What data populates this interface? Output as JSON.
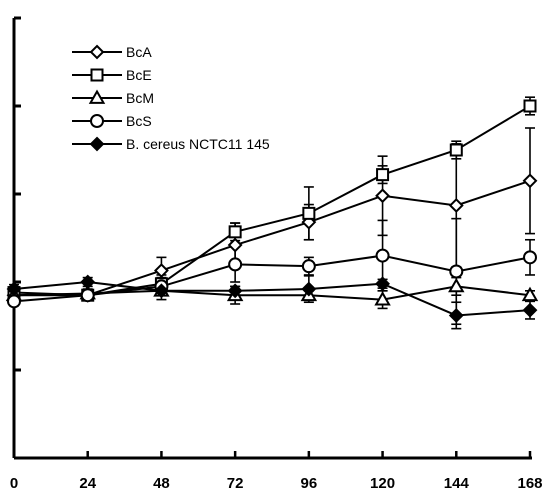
{
  "chart_data": {
    "type": "line",
    "title": "",
    "xlabel": "",
    "ylabel": "",
    "x": [
      0,
      24,
      48,
      72,
      96,
      120,
      144,
      168
    ],
    "xlim": [
      0,
      168
    ],
    "ylim": [
      0,
      5
    ],
    "y_ticks": [
      0,
      1,
      2,
      3,
      4,
      5
    ],
    "y_tick_labels_visible": false,
    "grid": false,
    "legend_position": "top-left",
    "series": [
      {
        "name": "BcA",
        "marker": "diamond-open",
        "values": [
          1.85,
          1.85,
          2.13,
          2.42,
          2.68,
          2.98,
          2.87,
          3.15
        ],
        "errors": [
          0.05,
          0.05,
          0.15,
          0.25,
          0.2,
          0.45,
          0.7,
          0.6
        ]
      },
      {
        "name": "BcE",
        "marker": "square-open",
        "values": [
          1.88,
          1.85,
          1.98,
          2.57,
          2.78,
          3.22,
          3.5,
          4.0
        ],
        "errors": [
          0.05,
          0.05,
          0.1,
          0.1,
          0.3,
          0.1,
          0.1,
          0.1
        ]
      },
      {
        "name": "BcM",
        "marker": "triangle-open",
        "values": [
          1.85,
          1.87,
          1.9,
          1.85,
          1.85,
          1.8,
          1.95,
          1.85
        ],
        "errors": [
          0.05,
          0.05,
          0.1,
          0.1,
          0.05,
          0.1,
          0.1,
          0.05
        ]
      },
      {
        "name": "BcS",
        "marker": "circle-open",
        "values": [
          1.78,
          1.85,
          1.95,
          2.2,
          2.18,
          2.3,
          2.12,
          2.28
        ],
        "errors": [
          0.05,
          0.05,
          0.1,
          0.2,
          0.1,
          0.4,
          0.6,
          0.2
        ]
      },
      {
        "name": "B. cereus NCTC11 145",
        "marker": "diamond-filled",
        "values": [
          1.92,
          2.0,
          1.9,
          1.9,
          1.92,
          1.98,
          1.62,
          1.68
        ],
        "errors": [
          0.05,
          0.05,
          0.05,
          0.05,
          0.15,
          0.05,
          0.15,
          0.1
        ]
      }
    ]
  }
}
